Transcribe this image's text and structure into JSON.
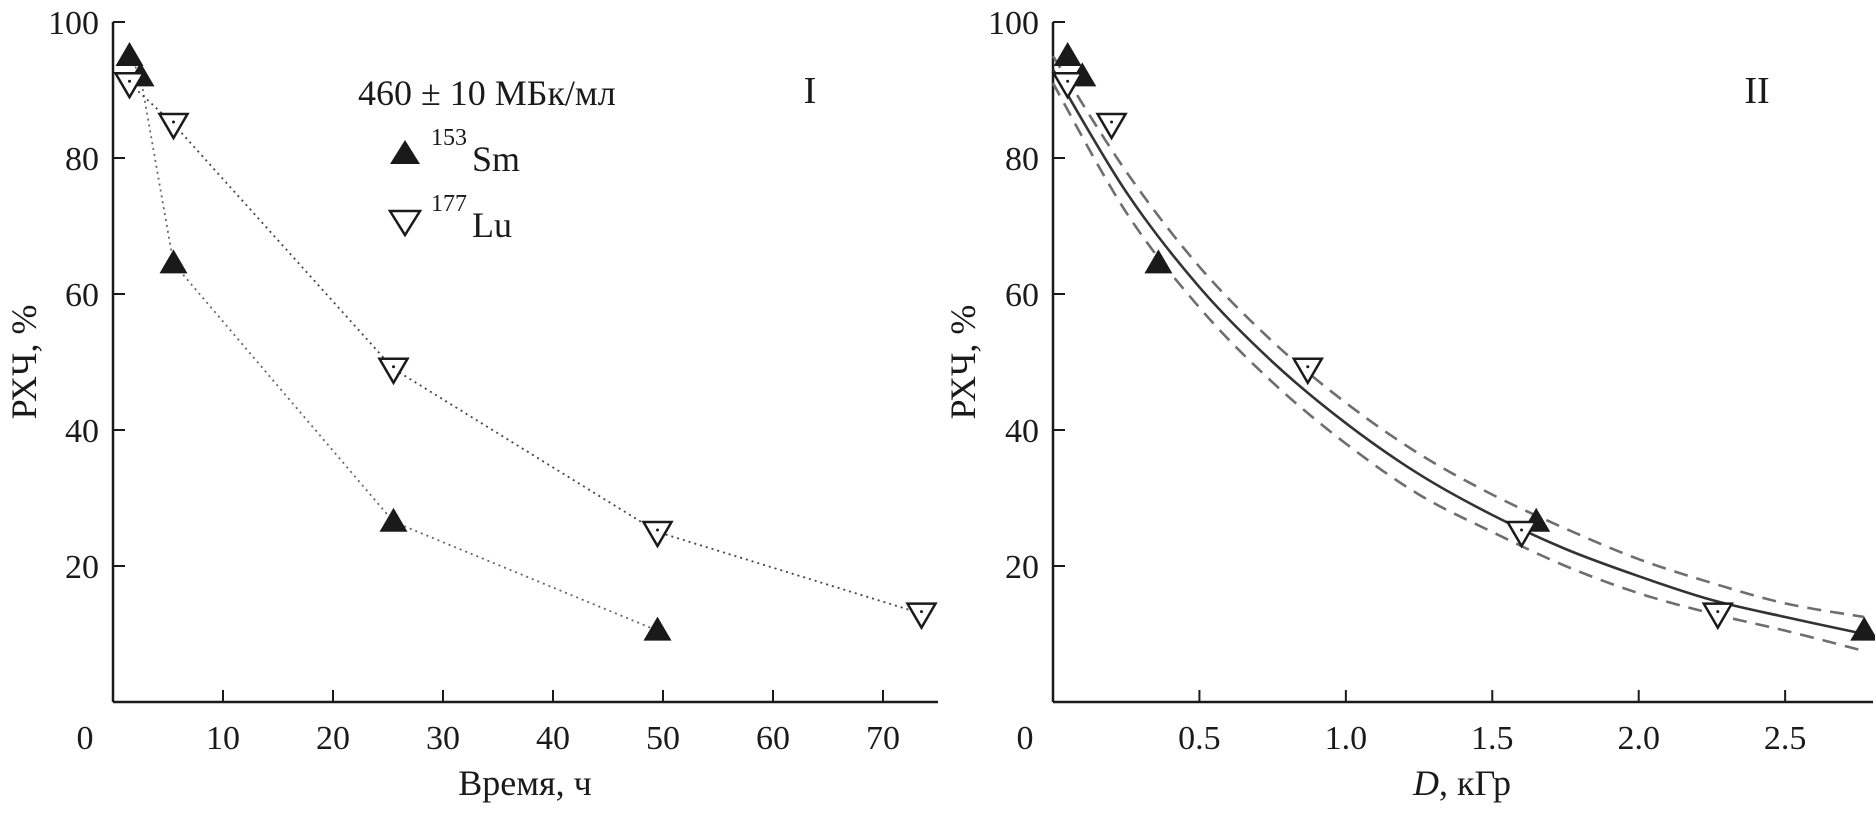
{
  "chart_data": [
    {
      "type": "line",
      "panel_label": "I",
      "xlabel": "Время, ч",
      "ylabel": "РХЧ, %",
      "xlim": [
        0,
        75
      ],
      "ylim": [
        0,
        100
      ],
      "x_ticks": [
        0,
        10,
        20,
        30,
        40,
        50,
        60,
        70
      ],
      "x_tick_labels": [
        "0",
        "10",
        "20",
        "30",
        "40",
        "50",
        "60",
        "70"
      ],
      "y_ticks": [
        20,
        40,
        60,
        80,
        100
      ],
      "y_tick_labels": [
        "20",
        "40",
        "60",
        "80",
        "100"
      ],
      "legend_title": "460 ± 10 МБк/мл",
      "legend_position": "top-center",
      "series": [
        {
          "name": "Sm",
          "mass_number": "153",
          "marker": "filled-triangle-up",
          "line": "dotted",
          "x": [
            1.5,
            2.5,
            5.5,
            25.5,
            49.5
          ],
          "y": [
            95,
            92,
            64.5,
            26.5,
            10.5
          ]
        },
        {
          "name": "Lu",
          "mass_number": "177",
          "marker": "open-triangle-down",
          "line": "dotted",
          "x": [
            1.5,
            5.5,
            25.5,
            49.5,
            73.5
          ],
          "y": [
            91,
            85,
            49,
            25,
            13
          ]
        }
      ]
    },
    {
      "type": "line",
      "panel_label": "II",
      "xlabel_italic": "D",
      "xlabel_rest": ", кГр",
      "ylabel": "РХЧ, %",
      "xlim": [
        0,
        2.8
      ],
      "ylim": [
        0,
        100
      ],
      "x_tick_labels": [
        {
          "value": 0,
          "label": "0"
        },
        {
          "value": 0.5,
          "label": "0.5"
        },
        {
          "value": 1.0,
          "label": "1.0"
        },
        {
          "value": 1.5,
          "label": "1.5"
        },
        {
          "value": 2.0,
          "label": "2.0"
        },
        {
          "value": 2.5,
          "label": "2.5"
        }
      ],
      "y_ticks": [
        20,
        40,
        60,
        80,
        100
      ],
      "y_tick_labels": [
        "20",
        "40",
        "60",
        "80",
        "100"
      ],
      "series": [
        {
          "name": "Sm",
          "mass_number": "153",
          "marker": "filled-triangle-up",
          "x": [
            0.05,
            0.1,
            0.36,
            1.65,
            2.77
          ],
          "y": [
            95,
            92,
            64.5,
            26.5,
            10.5
          ]
        },
        {
          "name": "Lu",
          "mass_number": "177",
          "marker": "open-triangle-down",
          "x": [
            0.05,
            0.2,
            0.87,
            1.6,
            2.27
          ],
          "y": [
            91,
            85,
            49,
            25,
            13
          ]
        }
      ],
      "fit": {
        "type": "exponential",
        "style": "solid",
        "x": [
          0,
          0.25,
          0.5,
          0.75,
          1.0,
          1.25,
          1.5,
          1.75,
          2.0,
          2.25,
          2.5,
          2.77
        ],
        "y": [
          93,
          75,
          61,
          50,
          41,
          33.5,
          27.5,
          22.5,
          18.5,
          15,
          12.5,
          10
        ]
      },
      "confidence_band": {
        "style": "dashed",
        "x": [
          0,
          0.25,
          0.5,
          0.75,
          1.0,
          1.25,
          1.5,
          1.75,
          2.0,
          2.25,
          2.5,
          2.77
        ],
        "upper": [
          95,
          78,
          64,
          53,
          44,
          36.5,
          30.5,
          25.5,
          21,
          17.5,
          14.5,
          12.5
        ],
        "lower": [
          91,
          72,
          58,
          47,
          38,
          30.5,
          25,
          20,
          16,
          13,
          10.5,
          7.5
        ]
      }
    }
  ]
}
